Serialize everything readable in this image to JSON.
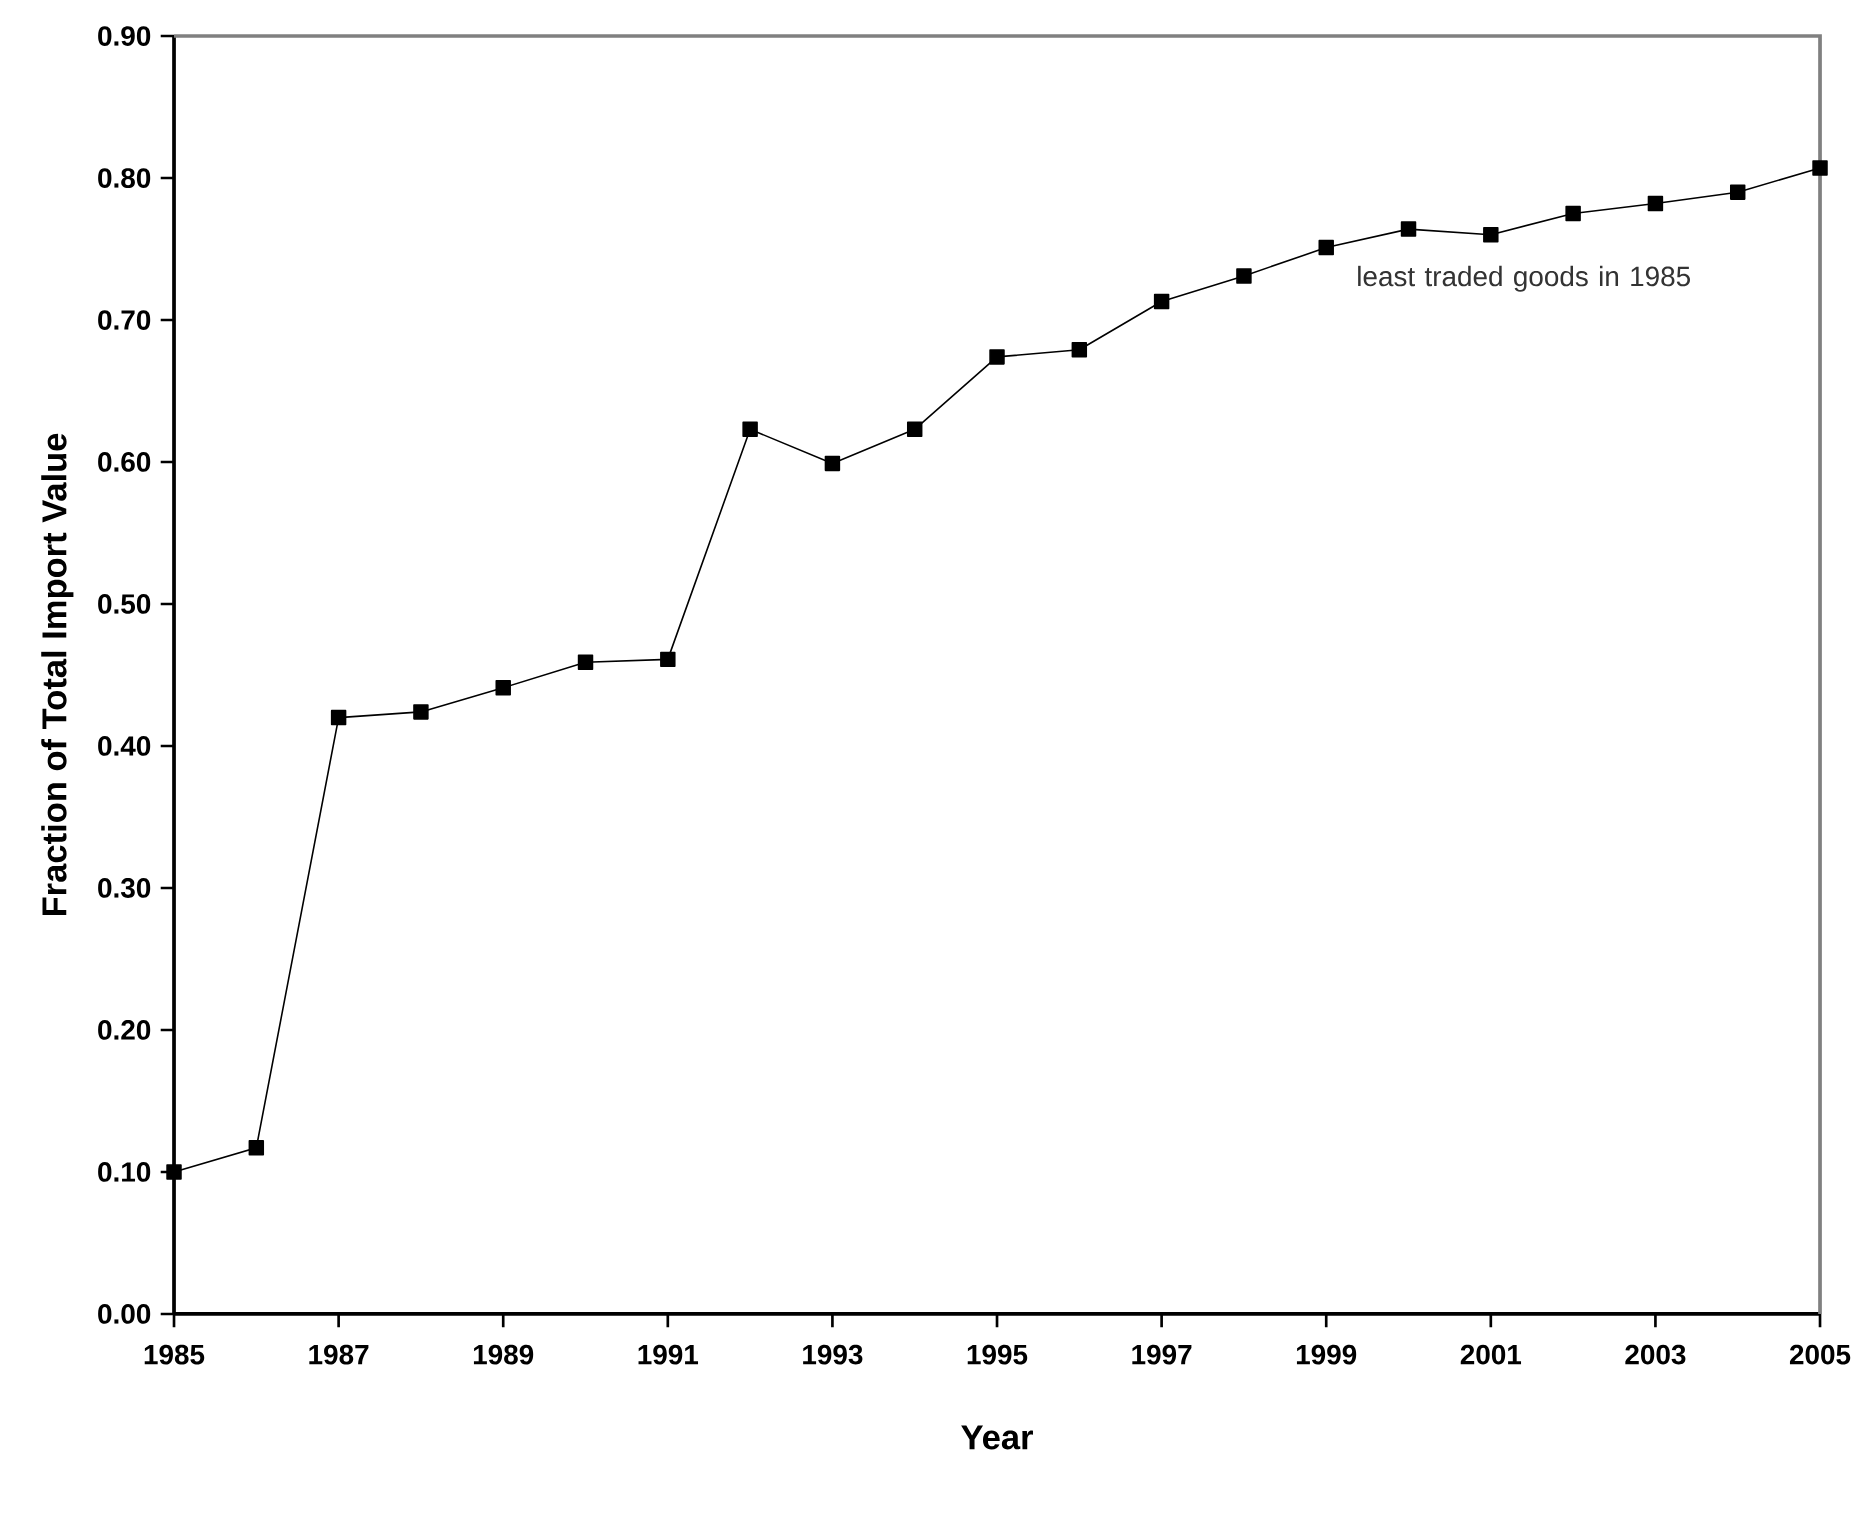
{
  "chart_data": {
    "type": "line",
    "xlabel": "Year",
    "ylabel": "Fraction of Total Import Value",
    "x": [
      1985,
      1986,
      1987,
      1988,
      1989,
      1990,
      1991,
      1992,
      1993,
      1994,
      1995,
      1996,
      1997,
      1998,
      1999,
      2000,
      2001,
      2002,
      2003,
      2004,
      2005
    ],
    "values": [
      0.1,
      0.117,
      0.42,
      0.424,
      0.441,
      0.459,
      0.461,
      0.623,
      0.599,
      0.623,
      0.674,
      0.679,
      0.713,
      0.731,
      0.751,
      0.764,
      0.76,
      0.775,
      0.782,
      0.79,
      0.807
    ],
    "color": "#000000",
    "marker": "square",
    "line_style": "solid",
    "xlim": [
      1985,
      2005
    ],
    "xticks": [
      1985,
      1987,
      1989,
      1991,
      1993,
      1995,
      1997,
      1999,
      2001,
      2003,
      2005
    ],
    "ylim": [
      0,
      0.9
    ],
    "yticks": [
      {
        "value": 0,
        "label": "0.00"
      },
      {
        "value": 0.1,
        "label": "0.10"
      },
      {
        "value": 0.2,
        "label": "0.20"
      },
      {
        "value": 0.3,
        "label": "0.30"
      },
      {
        "value": 0.4,
        "label": "0.40"
      },
      {
        "value": 0.5,
        "label": "0.50"
      },
      {
        "value": 0.6,
        "label": "0.60"
      },
      {
        "value": 0.7,
        "label": "0.70"
      },
      {
        "value": 0.8,
        "label": "0.80"
      },
      {
        "value": 0.9,
        "label": "0.90"
      }
    ],
    "annotations": [
      "least traded goods in 1985"
    ]
  }
}
